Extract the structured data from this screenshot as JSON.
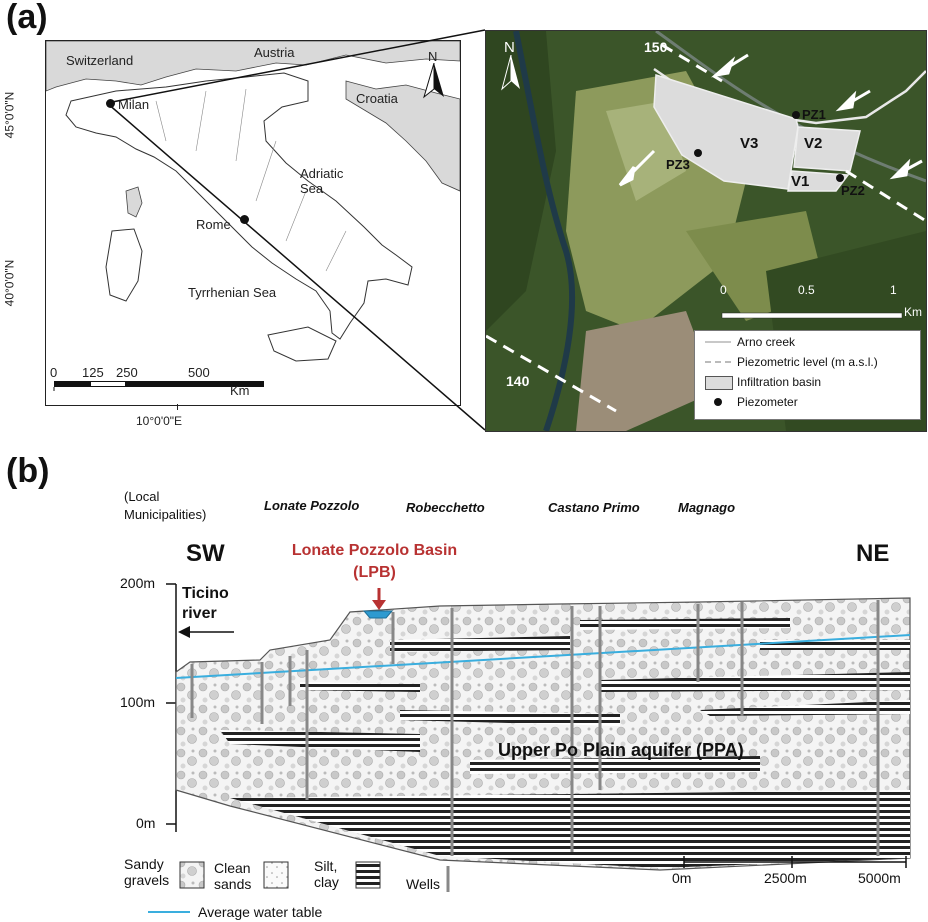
{
  "panel_a": {
    "label": "(a)",
    "coords": {
      "lat_top": "45°0'0\"N",
      "lat_bottom": "40°0'0\"N",
      "lon": "10°0'0\"E"
    },
    "italy_map": {
      "countries": [
        "Switzerland",
        "Austria",
        "Croatia"
      ],
      "cities": [
        "Milan",
        "Rome"
      ],
      "seas": {
        "adriatic": "Adriatic\nSea",
        "tyrrhenian": "Tyrrhenian Sea"
      },
      "north": "N",
      "scalebar": {
        "ticks": [
          "0",
          "125",
          "250",
          "500"
        ],
        "unit": "Km"
      }
    },
    "site_map": {
      "north": "N",
      "contours": [
        "150",
        "140"
      ],
      "basins": [
        "V3",
        "V2",
        "V1"
      ],
      "piezometers": [
        "PZ1",
        "PZ2",
        "PZ3"
      ],
      "scalebar": {
        "ticks": [
          "0",
          "0.5",
          "1"
        ],
        "unit": "Km"
      },
      "legend": [
        "Arno creek",
        "Piezometric level (m a.s.l.)",
        "Infiltration basin",
        "Piezometer"
      ]
    }
  },
  "panel_b": {
    "label": "(b)",
    "municipalities_label": "(Local\nMunicipalities)",
    "municipalities": [
      "Lonate Pozzolo",
      "Robecchetto",
      "Castano Primo",
      "Magnago"
    ],
    "orientation": {
      "left": "SW",
      "right": "NE"
    },
    "basin_label": "Lonate Pozzolo Basin\n(LPB)",
    "river_label": "Ticino\nriver",
    "y_ticks": [
      "200m",
      "100m",
      "0m"
    ],
    "aquifer_label": "Upper Po Plain aquifer (PPA)",
    "legend": {
      "sandy": "Sandy\ngravels",
      "clean": "Clean\nsands",
      "silt": "Silt,\nclay",
      "wells": "Wells",
      "water": "Average water table"
    },
    "scalebar": [
      "0m",
      "2500m",
      "5000m"
    ],
    "colors": {
      "water_table": "#3aaede",
      "basin": "#2e9ad0",
      "basin_label": "#b83232"
    }
  }
}
